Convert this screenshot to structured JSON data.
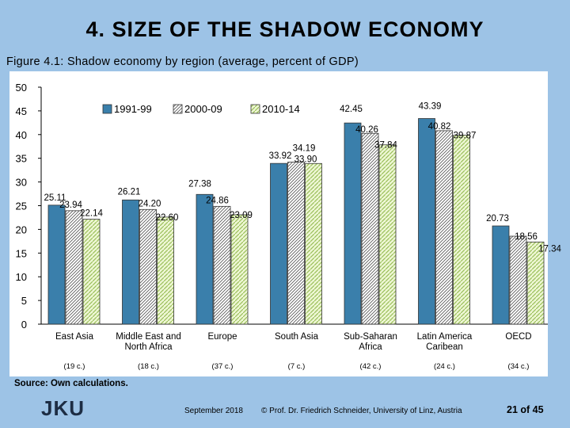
{
  "slide": {
    "title": "4. SIZE OF THE SHADOW ECONOMY",
    "figure_caption": "Figure 4.1: Shadow economy by region (average, percent of GDP)",
    "source": "Source: Own calculations.",
    "logo_text": "JKU",
    "footer_date": "September 2018",
    "footer_credit": "© Prof. Dr. Friedrich Schneider, University of Linz, Austria",
    "page_number": "21 of 45"
  },
  "chart_data": {
    "type": "bar",
    "categories": [
      "East Asia",
      "Middle East and North Africa",
      "Europe",
      "South Asia",
      "Sub-Saharan Africa",
      "Latin America Caribean",
      "OECD"
    ],
    "category_lines": [
      [
        "East Asia"
      ],
      [
        "Middle East and",
        "North Africa"
      ],
      [
        "Europe"
      ],
      [
        "South Asia"
      ],
      [
        "Sub-Saharan",
        "Africa"
      ],
      [
        "Latin America",
        "Caribean"
      ],
      [
        "OECD"
      ]
    ],
    "country_counts": [
      "(19 c.)",
      "(18 c.)",
      "(37 c.)",
      "(7 c.)",
      "(42 c.)",
      "(24 c.)",
      "(34 c.)"
    ],
    "series": [
      {
        "name": "1991-99",
        "values": [
          25.11,
          26.21,
          27.38,
          33.92,
          42.45,
          43.39,
          20.73
        ],
        "labels": [
          "25.11",
          "26.21",
          "27.38",
          "33.92",
          "42.45",
          "43.39",
          "20.73"
        ],
        "color": "#3a7fab"
      },
      {
        "name": "2000-09",
        "values": [
          23.94,
          24.2,
          24.86,
          34.19,
          40.26,
          40.82,
          18.56
        ],
        "labels": [
          "23.94",
          "24.20",
          "24.86",
          "34.19",
          "40.26",
          "40.82",
          "18.56"
        ],
        "color": "#ffffff"
      },
      {
        "name": "2010-14",
        "values": [
          22.14,
          22.6,
          23.09,
          33.9,
          37.84,
          39.87,
          17.34
        ],
        "labels": [
          "22.14",
          "22.60",
          "23.09",
          "33.90",
          "37.84",
          "39.87",
          "17.34"
        ],
        "color": "#e6f3c4"
      }
    ],
    "y_ticks": [
      "0",
      "5",
      "10",
      "15",
      "20",
      "25",
      "30",
      "35",
      "40",
      "45",
      "50"
    ],
    "ylim": [
      0,
      50
    ],
    "xlabel": "",
    "ylabel": "",
    "grid": false,
    "legend_position": "top-left"
  }
}
